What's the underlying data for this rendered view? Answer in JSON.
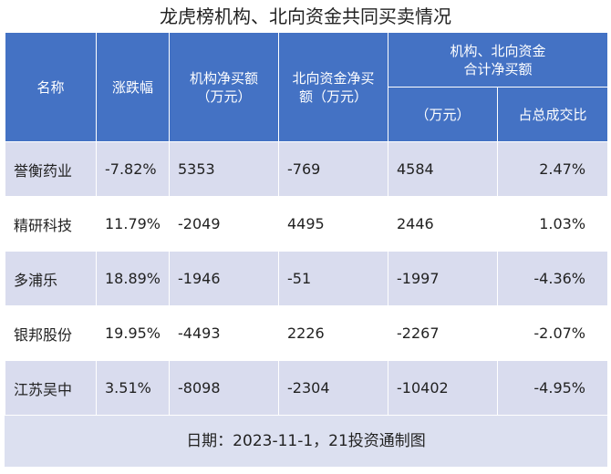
{
  "title": "龙虎榜机构、北向资金共同买卖情况",
  "headers": {
    "name": "名称",
    "change": "涨跌幅",
    "inst_net_line1": "机构净买额",
    "inst_net_line2": "（万元）",
    "north_net_line1": "北向资金净买",
    "north_net_line2": "额（万元）",
    "combined_line1": "机构、北向资金",
    "combined_line2": "合计净买额",
    "combined_unit": "（万元）",
    "ratio": "占总成交比"
  },
  "rows": [
    {
      "name": "誉衡药业",
      "change": "-7.82%",
      "inst_net": "5353",
      "north_net": "-769",
      "combined_net": "4584",
      "ratio": "2.47%"
    },
    {
      "name": "精研科技",
      "change": "11.79%",
      "inst_net": "-2049",
      "north_net": "4495",
      "combined_net": "2446",
      "ratio": "1.03%"
    },
    {
      "name": "多浦乐",
      "change": "18.89%",
      "inst_net": "-1946",
      "north_net": "-51",
      "combined_net": "-1997",
      "ratio": "-4.36%"
    },
    {
      "name": "银邦股份",
      "change": "19.95%",
      "inst_net": "-4493",
      "north_net": "2226",
      "combined_net": "-2267",
      "ratio": "-2.07%"
    },
    {
      "name": "江苏吴中",
      "change": "3.51%",
      "inst_net": "-8098",
      "north_net": "-2304",
      "combined_net": "-10402",
      "ratio": "-4.95%"
    }
  ],
  "footer": "日期：2023-11-1，21投资通制图",
  "colors": {
    "header_bg": "#4472c4",
    "row_stripe": "#d9dcee",
    "footer_bg": "#dce0f0"
  }
}
